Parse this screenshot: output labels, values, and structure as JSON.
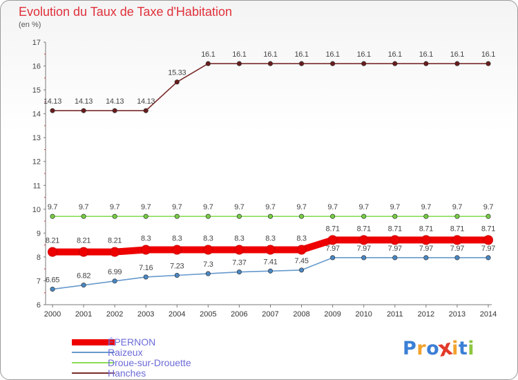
{
  "chart_data": {
    "type": "line",
    "title": "Evolution du Taux de Taxe d'Habitation",
    "subtitle": "(en %)",
    "categories": [
      "2000",
      "2001",
      "2002",
      "2003",
      "2004",
      "2005",
      "2006",
      "2007",
      "2008",
      "2009",
      "2010",
      "2011",
      "2012",
      "2013",
      "2014"
    ],
    "ylim": [
      6,
      17
    ],
    "yticks": [
      6,
      7,
      8,
      9,
      10,
      11,
      12,
      13,
      14,
      15,
      16,
      17
    ],
    "grid": false,
    "series": [
      {
        "name": "Hanches",
        "color": "#7a2a2a",
        "marker_color": "#6a1c1c",
        "values": [
          14.13,
          14.13,
          14.13,
          14.13,
          15.33,
          16.1,
          16.1,
          16.1,
          16.1,
          16.1,
          16.1,
          16.1,
          16.1,
          16.1,
          16.1
        ],
        "labels": [
          "14.13",
          "14.13",
          "14.13",
          "14.13",
          "15.33",
          "16.1",
          "16.1",
          "16.1",
          "16.1",
          "16.1",
          "16.1",
          "16.1",
          "16.1",
          "16.1",
          "16.1"
        ]
      },
      {
        "name": "Droue-sur-Drouette",
        "color": "#88dd55",
        "marker_color": "#77cc44",
        "values": [
          9.7,
          9.7,
          9.7,
          9.7,
          9.7,
          9.7,
          9.7,
          9.7,
          9.7,
          9.7,
          9.7,
          9.7,
          9.7,
          9.7,
          9.7
        ],
        "labels": [
          "9.7",
          "9.7",
          "9.7",
          "9.7",
          "9.7",
          "9.7",
          "9.7",
          "9.7",
          "9.7",
          "9.7",
          "9.7",
          "9.7",
          "9.7",
          "9.7",
          "9.7"
        ]
      },
      {
        "name": "ÉPERNON",
        "color": "#ee0000",
        "marker_color": "#ee0000",
        "emphasis": true,
        "values": [
          8.21,
          8.21,
          8.21,
          8.3,
          8.3,
          8.3,
          8.3,
          8.3,
          8.3,
          8.71,
          8.71,
          8.71,
          8.71,
          8.71,
          8.71
        ],
        "labels": [
          "8.21",
          "8.21",
          "8.21",
          "8.3",
          "8.3",
          "8.3",
          "8.3",
          "8.3",
          "8.3",
          "8.71",
          "8.71",
          "8.71",
          "8.71",
          "8.71",
          "8.71"
        ]
      },
      {
        "name": "Raizeux",
        "color": "#6699cc",
        "marker_color": "#4a88c4",
        "values": [
          6.65,
          6.82,
          6.99,
          7.16,
          7.23,
          7.3,
          7.37,
          7.41,
          7.45,
          7.97,
          7.97,
          7.97,
          7.97,
          7.97,
          7.97
        ],
        "labels": [
          "6.65",
          "6.82",
          "6.99",
          "7.16",
          "7.23",
          "7.3",
          "7.37",
          "7.41",
          "7.45",
          "7.97",
          "7.97",
          "7.97",
          "7.97",
          "7.97",
          "7.97"
        ]
      }
    ],
    "legend_order": [
      "ÉPERNON",
      "Raizeux",
      "Droue-sur-Drouette",
      "Hanches"
    ],
    "legend_position": "bottom-left"
  },
  "brand": {
    "name": "Proxiti",
    "letters": [
      "P",
      "r",
      "o",
      "x",
      "i",
      "t",
      "i"
    ],
    "letter_colors": [
      "#3b7fd6",
      "#f2a22c",
      "#3b7fd6",
      "#e23a2a",
      "#f2a22c",
      "#3b7fd6",
      "#8cc63f"
    ]
  }
}
